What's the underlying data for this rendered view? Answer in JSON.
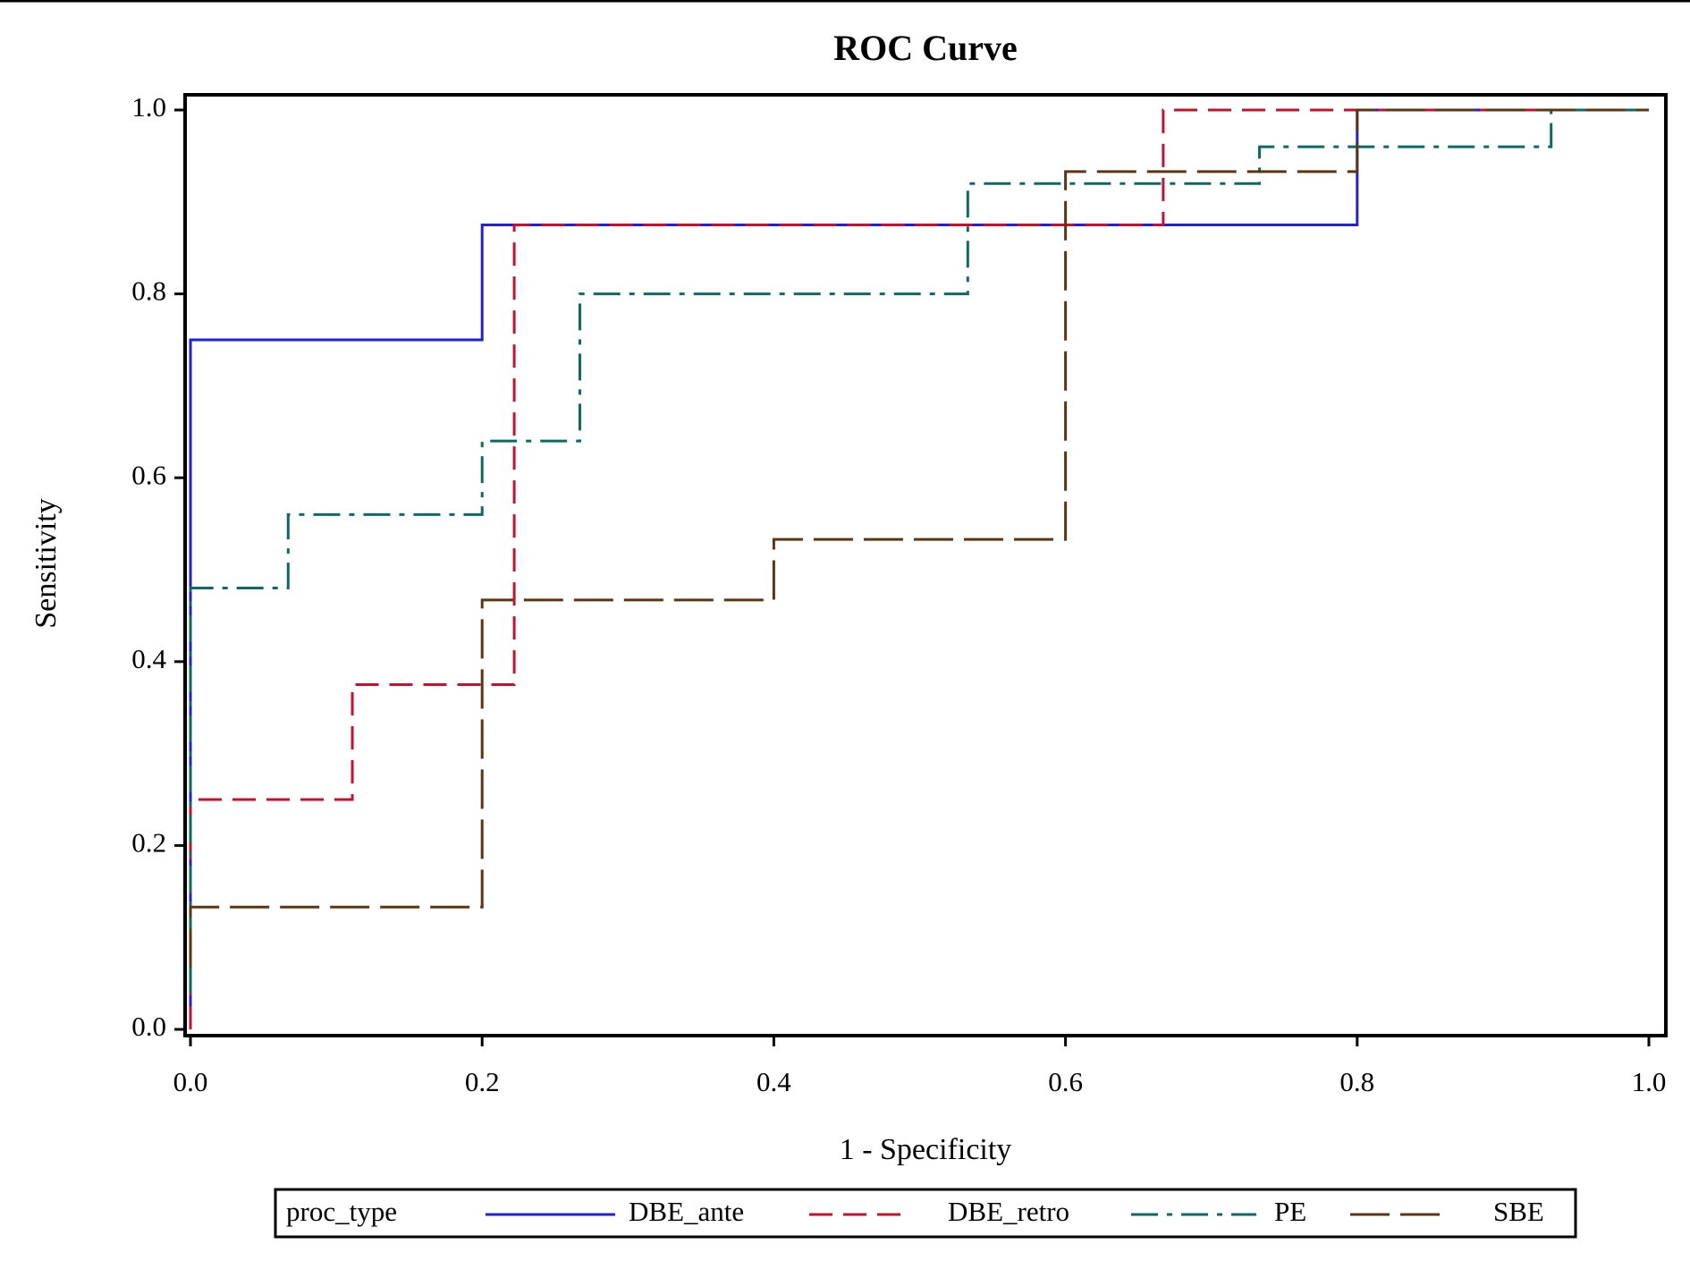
{
  "chart_data": {
    "type": "step-line",
    "title": "ROC Curve",
    "xlabel": "1 - Specificity",
    "ylabel": "Sensitivity",
    "xlim": [
      0,
      1
    ],
    "ylim": [
      0,
      1
    ],
    "xticks": [
      {
        "value": 0,
        "label": "0.0"
      },
      0.2,
      0.4,
      0.6,
      0.8,
      {
        "value": 1,
        "label": "1.0"
      }
    ],
    "yticks": [
      {
        "value": 0,
        "label": "0.0"
      },
      0.2,
      0.4,
      0.6,
      0.8,
      {
        "value": 1,
        "label": "1.0"
      }
    ],
    "legend_title": "proc_type",
    "legend_position": "bottom",
    "series": [
      {
        "name": "DBE_ante",
        "color": "#1f1fe0",
        "dash": "solid",
        "x": [
          0,
          0,
          0.2,
          0.2,
          0.8,
          0.8,
          1
        ],
        "values": [
          0,
          0.75,
          0.75,
          0.875,
          0.875,
          1,
          1
        ]
      },
      {
        "name": "DBE_retro",
        "color": "#c8102e",
        "dash": "dash",
        "x": [
          0,
          0,
          0.111,
          0.111,
          0.222,
          0.222,
          0.667,
          0.667,
          1
        ],
        "values": [
          0,
          0.25,
          0.25,
          0.375,
          0.375,
          0.875,
          0.875,
          1,
          1
        ]
      },
      {
        "name": "PE",
        "color": "#0a6b60",
        "dash": "dashdot",
        "x": [
          0,
          0,
          0.067,
          0.067,
          0.2,
          0.2,
          0.267,
          0.267,
          0.533,
          0.533,
          0.733,
          0.733,
          0.933,
          0.933,
          1
        ],
        "values": [
          0.04,
          0.48,
          0.48,
          0.56,
          0.56,
          0.64,
          0.64,
          0.8,
          0.8,
          0.92,
          0.92,
          0.96,
          0.96,
          1,
          1
        ]
      },
      {
        "name": "SBE",
        "color": "#5c3511",
        "dash": "longdash",
        "x": [
          0,
          0,
          0.2,
          0.2,
          0.4,
          0.4,
          0.6,
          0.6,
          0.8,
          0.8,
          1
        ],
        "values": [
          0.067,
          0.133,
          0.133,
          0.467,
          0.467,
          0.533,
          0.533,
          0.933,
          0.933,
          1,
          1
        ]
      }
    ]
  }
}
